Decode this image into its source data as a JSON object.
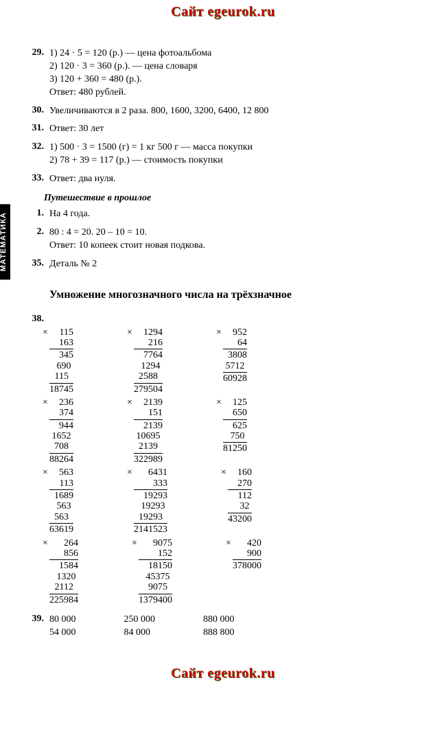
{
  "watermark": "Сайт egeurok.ru",
  "sidebar_label": "МАТЕМАТИКА",
  "problems": [
    {
      "num": "29.",
      "lines": [
        "1) 24 · 5 = 120 (р.) — цена фотоальбома",
        "2) 120 · 3 = 360 (р.). — цена словаря",
        "3) 120 + 360 = 480 (р.).",
        "Ответ: 480 рублей."
      ]
    },
    {
      "num": "30.",
      "lines": [
        "Увеличиваются в 2 раза. 800, 1600, 3200, 6400, 12 800"
      ]
    },
    {
      "num": "31.",
      "lines": [
        "Ответ: 30 лет"
      ]
    },
    {
      "num": "32.",
      "lines": [
        "1) 500 · 3 = 1500 (г) = 1 кг 500 г — масса покупки",
        "2) 78 + 39 = 117 (р.) — стоимость покупки"
      ]
    },
    {
      "num": "33.",
      "lines": [
        "Ответ: два нуля."
      ]
    }
  ],
  "journey_title": "Путешествие в прошлое",
  "journey_problems": [
    {
      "num": "1.",
      "lines": [
        "На 4 года."
      ]
    },
    {
      "num": "2.",
      "lines": [
        "80 : 4 = 20. 20 – 10 = 10.",
        "Ответ: 10 копеек стоит новая подкова."
      ]
    },
    {
      "num": "35.",
      "lines": [
        "Деталь № 2"
      ]
    }
  ],
  "chapter_title": "Умножение многозначного числа на трёхзначное",
  "p38_num": "38.",
  "mult_rows": [
    [
      {
        "top": "115",
        "bot": "163",
        "partials": [
          "345",
          "690",
          "115"
        ],
        "result": "18745",
        "w": 5
      },
      {
        "top": "1294",
        "bot": "216",
        "partials": [
          "7764",
          "1294",
          "2588"
        ],
        "result": "279504",
        "w": 6
      },
      {
        "top": "952",
        "bot": "64",
        "partials": [
          "3808",
          "5712"
        ],
        "result": "60928",
        "w": 5
      }
    ],
    [
      {
        "top": "236",
        "bot": "374",
        "partials": [
          "944",
          "1652",
          "708"
        ],
        "result": "88264",
        "w": 5
      },
      {
        "top": "2139",
        "bot": "151",
        "partials": [
          "2139",
          "10695",
          "2139"
        ],
        "result": "322989",
        "w": 6
      },
      {
        "top": "125",
        "bot": "650",
        "partials": [
          "625",
          "750"
        ],
        "result": "81250",
        "w": 5
      }
    ],
    [
      {
        "top": "563",
        "bot": "113",
        "partials": [
          "1689",
          "563",
          "563"
        ],
        "result": "63619",
        "w": 5
      },
      {
        "top": "6431",
        "bot": "333",
        "partials": [
          "19293",
          "19293",
          "19293"
        ],
        "result": "2141523",
        "w": 7
      },
      {
        "top": "160",
        "bot": "270",
        "partials": [
          "112",
          "32"
        ],
        "result": "43200",
        "w": 5
      }
    ],
    [
      {
        "top": "264",
        "bot": "856",
        "partials": [
          "1584",
          "1320",
          "2112"
        ],
        "result": "225984",
        "w": 6
      },
      {
        "top": "9075",
        "bot": "152",
        "partials": [
          "18150",
          "45375",
          "9075"
        ],
        "result": "1379400",
        "w": 7
      },
      {
        "top": "420",
        "bot": "900",
        "partials": [],
        "result": "378000",
        "w": 6
      }
    ]
  ],
  "p39_num": "39.",
  "p39_cols": [
    "80 000\n54 000",
    "250 000\n84 000",
    "880 000\n888 800"
  ]
}
